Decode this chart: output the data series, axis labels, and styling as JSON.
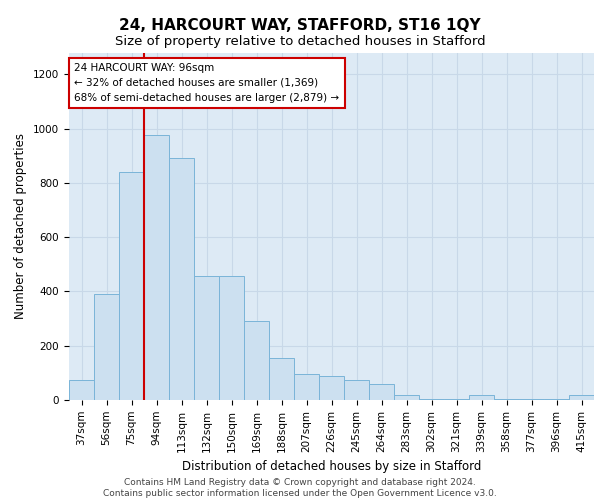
{
  "title": "24, HARCOURT WAY, STAFFORD, ST16 1QY",
  "subtitle": "Size of property relative to detached houses in Stafford",
  "xlabel": "Distribution of detached houses by size in Stafford",
  "ylabel": "Number of detached properties",
  "categories": [
    "37sqm",
    "56sqm",
    "75sqm",
    "94sqm",
    "113sqm",
    "132sqm",
    "150sqm",
    "169sqm",
    "188sqm",
    "207sqm",
    "226sqm",
    "245sqm",
    "264sqm",
    "283sqm",
    "302sqm",
    "321sqm",
    "339sqm",
    "358sqm",
    "377sqm",
    "396sqm",
    "415sqm"
  ],
  "values": [
    75,
    390,
    840,
    975,
    890,
    455,
    455,
    290,
    155,
    95,
    90,
    75,
    60,
    20,
    5,
    5,
    20,
    5,
    5,
    5,
    20
  ],
  "bar_color": "#cce0f0",
  "bar_edge_color": "#7ab4d8",
  "annotation_box_text": "24 HARCOURT WAY: 96sqm\n← 32% of detached houses are smaller (1,369)\n68% of semi-detached houses are larger (2,879) →",
  "annotation_box_color": "#ffffff",
  "annotation_box_edge_color": "#cc0000",
  "vline_color": "#cc0000",
  "vline_x": 2.5,
  "ylim": [
    0,
    1280
  ],
  "yticks": [
    0,
    200,
    400,
    600,
    800,
    1000,
    1200
  ],
  "grid_color": "#c8d8e8",
  "background_color": "#ddeaf5",
  "footer_text": "Contains HM Land Registry data © Crown copyright and database right 2024.\nContains public sector information licensed under the Open Government Licence v3.0.",
  "title_fontsize": 11,
  "subtitle_fontsize": 9.5,
  "axis_label_fontsize": 8.5,
  "tick_fontsize": 7.5,
  "annotation_fontsize": 7.5,
  "footer_fontsize": 6.5
}
